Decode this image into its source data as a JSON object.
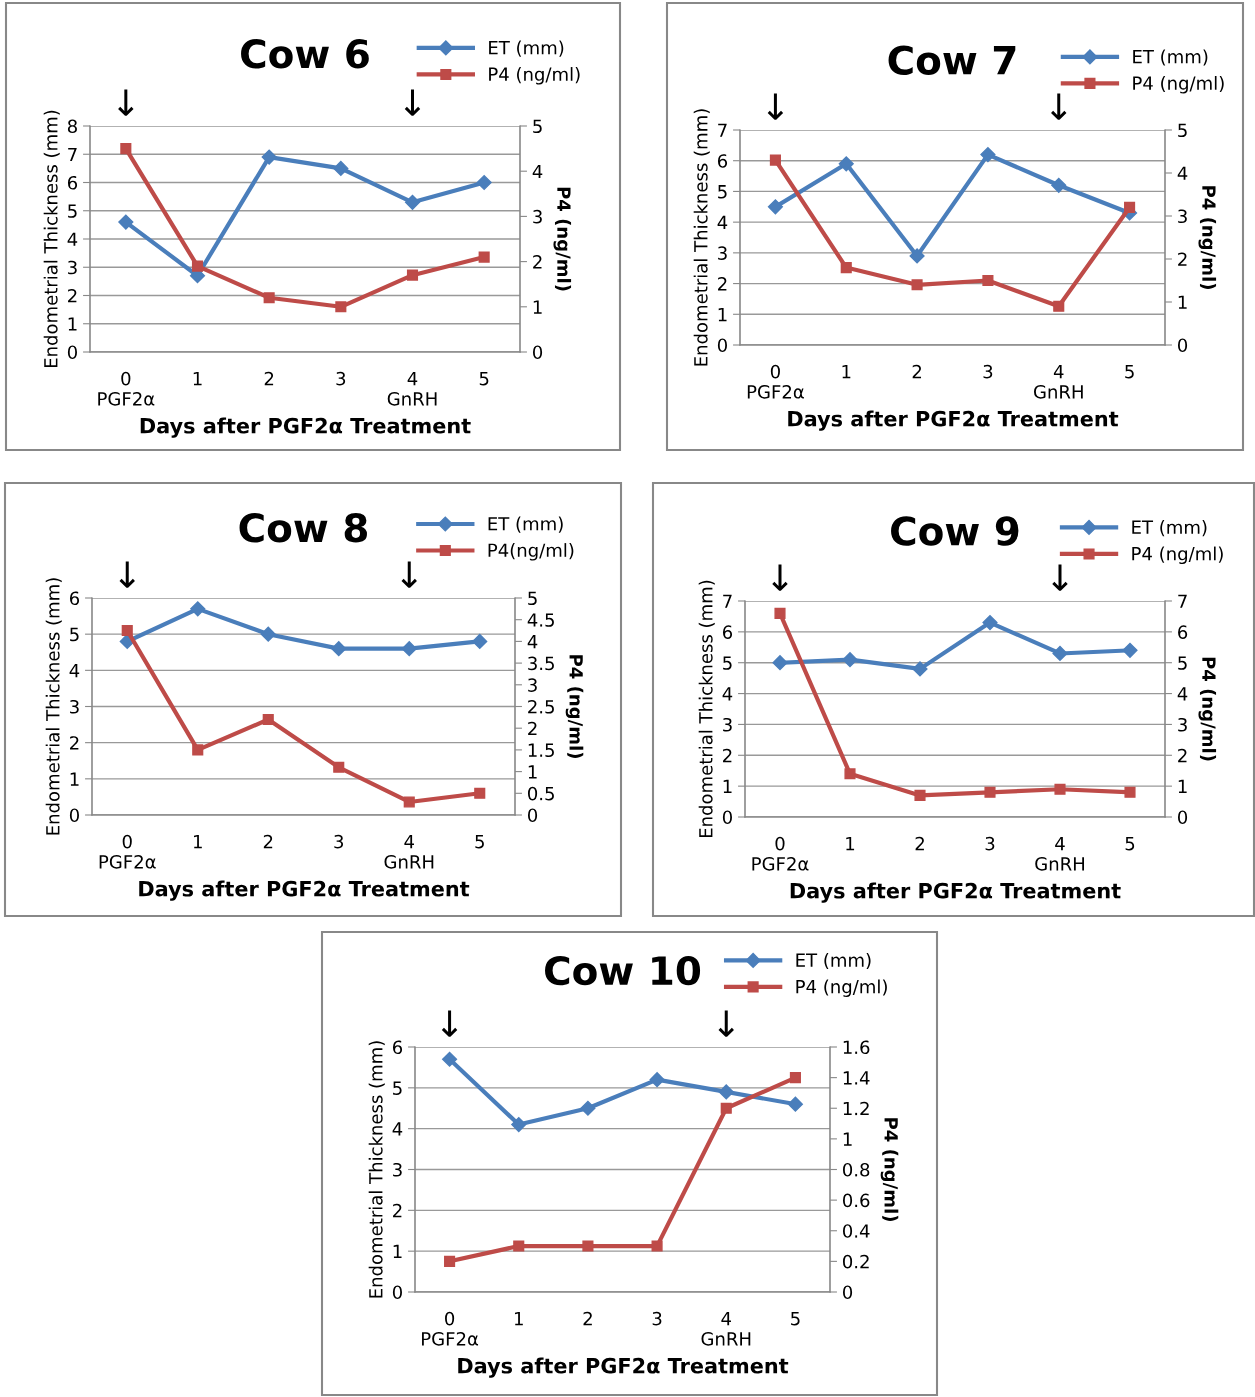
{
  "chart_data": [
    {
      "type": "line",
      "title": "Cow 6",
      "xlabel": "Days after PGF2α Treatment",
      "ylabel": "Endometrial Thickness (mm)",
      "y2label": "P4 (ng/ml)",
      "categories": [
        "0\nPGF2α",
        "1",
        "2",
        "3",
        "4\nGnRH",
        "5"
      ],
      "ylim": [
        0,
        8
      ],
      "yticks": [
        0,
        1,
        2,
        3,
        4,
        5,
        6,
        7,
        8
      ],
      "y2lim": [
        0,
        5
      ],
      "y2ticks": [
        0,
        1,
        2,
        3,
        4,
        5
      ],
      "grid": "y",
      "legend": "top right",
      "line_style": "solid",
      "series": [
        {
          "name": "ET (mm)",
          "color": "#4a7ebb",
          "marker": "diamond",
          "values": [
            4.6,
            2.7,
            6.9,
            6.5,
            5.3,
            6.0
          ]
        },
        {
          "name": "P4 (ng/ml)",
          "color": "#be4b48",
          "marker": "square",
          "axis": "y2",
          "values": [
            4.5,
            1.9,
            1.2,
            1.0,
            1.7,
            2.1
          ]
        }
      ],
      "annotations": [
        "↓",
        "↓"
      ]
    },
    {
      "type": "line",
      "title": "Cow 7",
      "xlabel": "Days after PGF2α Treatment",
      "ylabel": "Endometrial Thickness (mm)",
      "y2label": "P4 (ng/ml)",
      "categories": [
        "0\nPGF2α",
        "1",
        "2",
        "3",
        "4\nGnRH",
        "5"
      ],
      "ylim": [
        0,
        7
      ],
      "yticks": [
        0,
        1,
        2,
        3,
        4,
        5,
        6,
        7
      ],
      "y2lim": [
        0,
        5
      ],
      "y2ticks": [
        0,
        1,
        2,
        3,
        4,
        5
      ],
      "grid": "y",
      "legend": "top right",
      "line_style": "solid",
      "series": [
        {
          "name": "ET (mm)",
          "color": "#4a7ebb",
          "marker": "diamond",
          "values": [
            4.5,
            5.9,
            2.9,
            6.2,
            5.2,
            4.3
          ]
        },
        {
          "name": "P4 (ng/ml)",
          "color": "#be4b48",
          "marker": "square",
          "axis": "y2",
          "values": [
            4.3,
            1.8,
            1.4,
            1.5,
            0.9,
            3.2
          ]
        }
      ],
      "annotations": [
        "↓",
        "↓"
      ]
    },
    {
      "type": "line",
      "title": "Cow 8",
      "xlabel": "Days after PGF2α Treatment",
      "ylabel": "Endometrial Thickness (mm)",
      "y2label": "P4 (ng/ml)",
      "categories": [
        "0\nPGF2α",
        "1",
        "2",
        "3",
        "4\nGnRH",
        "5"
      ],
      "ylim": [
        0,
        6
      ],
      "yticks": [
        0,
        1,
        2,
        3,
        4,
        5,
        6
      ],
      "y2lim": [
        0,
        5
      ],
      "y2ticks": [
        0,
        0.5,
        1,
        1.5,
        2,
        2.5,
        3,
        3.5,
        4,
        4.5,
        5
      ],
      "grid": "y",
      "legend": "top right",
      "line_style": "solid",
      "series": [
        {
          "name": "ET (mm)",
          "color": "#4a7ebb",
          "marker": "diamond",
          "values": [
            4.8,
            5.7,
            5.0,
            4.6,
            4.6,
            4.8
          ]
        },
        {
          "name": "P4(ng/ml)",
          "color": "#be4b48",
          "marker": "square",
          "axis": "y2",
          "values": [
            4.25,
            1.5,
            2.2,
            1.1,
            0.3,
            0.5
          ]
        }
      ],
      "annotations": [
        "↓",
        "↓"
      ]
    },
    {
      "type": "line",
      "title": "Cow 9",
      "xlabel": "Days after PGF2α Treatment",
      "ylabel": "Endometrial Thickness (mm)",
      "y2label": "P4 (ng/ml)",
      "categories": [
        "0\nPGF2α",
        "1",
        "2",
        "3",
        "4\nGnRH",
        "5"
      ],
      "ylim": [
        0,
        7
      ],
      "yticks": [
        0,
        1,
        2,
        3,
        4,
        5,
        6,
        7
      ],
      "y2lim": [
        0,
        7
      ],
      "y2ticks": [
        0,
        1,
        2,
        3,
        4,
        5,
        6,
        7
      ],
      "grid": "y",
      "legend": "top right",
      "line_style": "solid",
      "series": [
        {
          "name": "ET (mm)",
          "color": "#4a7ebb",
          "marker": "diamond",
          "values": [
            5.0,
            5.1,
            4.8,
            6.3,
            5.3,
            5.4
          ]
        },
        {
          "name": "P4 (ng/ml)",
          "color": "#be4b48",
          "marker": "square",
          "axis": "y2",
          "values": [
            6.6,
            1.4,
            0.7,
            0.8,
            0.9,
            0.8
          ]
        }
      ],
      "annotations": [
        "↓",
        "↓"
      ]
    },
    {
      "type": "line",
      "title": "Cow 10",
      "xlabel": "Days after PGF2α Treatment",
      "ylabel": "Endometrial Thickness (mm)",
      "y2label": "P4 (ng/ml)",
      "categories": [
        "0\nPGF2α",
        "1",
        "2",
        "3",
        "4\nGnRH",
        "5"
      ],
      "ylim": [
        0,
        6
      ],
      "yticks": [
        0,
        1,
        2,
        3,
        4,
        5,
        6
      ],
      "y2lim": [
        0,
        1.6
      ],
      "y2ticks": [
        0,
        0.2,
        0.4,
        0.6,
        0.8,
        1,
        1.2,
        1.4,
        1.6
      ],
      "grid": "y",
      "legend": "top right",
      "line_style": "solid",
      "series": [
        {
          "name": "ET (mm)",
          "color": "#4a7ebb",
          "marker": "diamond",
          "values": [
            5.7,
            4.1,
            4.5,
            5.2,
            4.9,
            4.6
          ]
        },
        {
          "name": "P4 (ng/ml)",
          "color": "#be4b48",
          "marker": "square",
          "axis": "y2",
          "values": [
            0.2,
            0.3,
            0.3,
            0.3,
            1.2,
            1.4
          ]
        }
      ],
      "annotations": [
        "↓",
        "↓"
      ]
    }
  ]
}
